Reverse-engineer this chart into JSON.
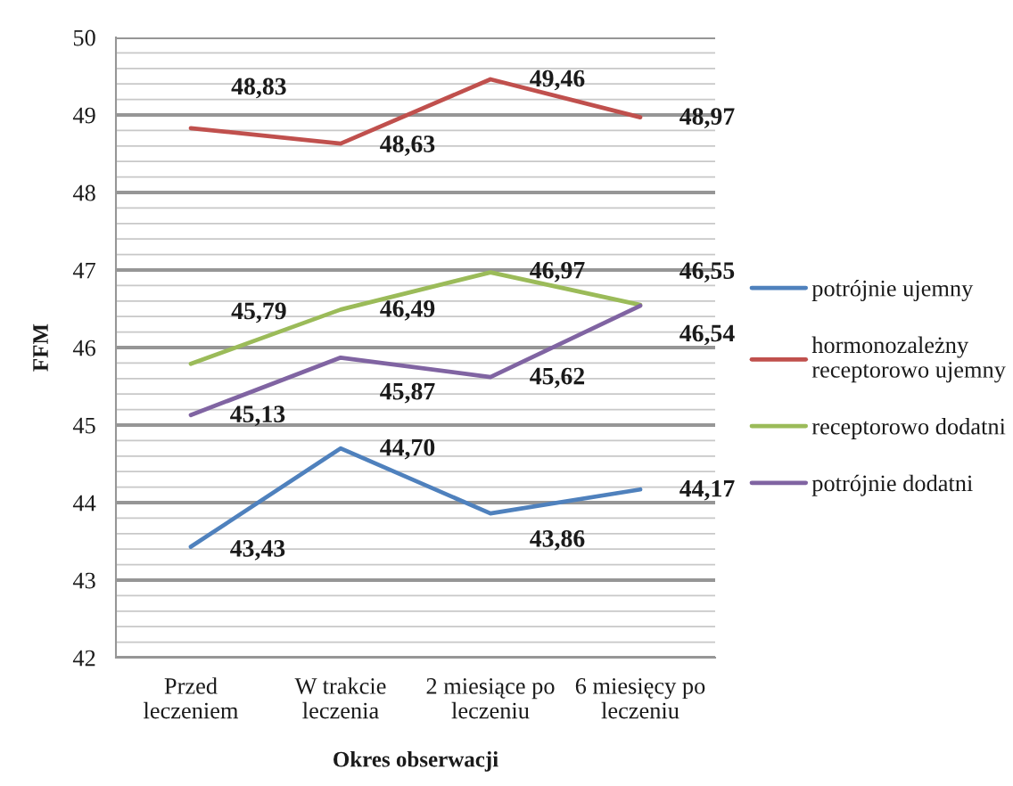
{
  "chart_data": {
    "type": "line",
    "xlabel": "Okres obserwacji",
    "ylabel": "FFM",
    "categories": [
      "Przed\nleczeniem",
      "W trakcie\nleczenia",
      "2 miesiące po\nleczeniu",
      "6 miesięcy po\nleczeniu"
    ],
    "series": [
      {
        "name": "potrójnie ujemny",
        "color": "#4f81bd",
        "values": [
          43.43,
          44.7,
          43.86,
          44.17
        ],
        "value_labels": [
          "43,43",
          "44,70",
          "43,86",
          "44,17"
        ]
      },
      {
        "name": "hormonozależny\nreceptorowo ujemny",
        "color": "#c0504d",
        "values": [
          48.83,
          48.63,
          49.46,
          48.97
        ],
        "value_labels": [
          "48,83",
          "48,63",
          "49,46",
          "48,97"
        ]
      },
      {
        "name": "receptorowo dodatni",
        "color": "#9bbb59",
        "values": [
          45.79,
          46.49,
          46.97,
          46.55
        ],
        "value_labels": [
          "45,79",
          "46,49",
          "46,97",
          "46,55"
        ]
      },
      {
        "name": "potrójnie dodatni",
        "color": "#8064a2",
        "values": [
          45.13,
          45.87,
          45.62,
          46.54
        ],
        "value_labels": [
          "45,13",
          "45,87",
          "45,62",
          "46,54"
        ]
      }
    ],
    "ylim": [
      42,
      50
    ],
    "yticks": [
      42,
      {
        "value": 42.2,
        "label": null
      },
      {
        "value": 42.4,
        "label": null
      },
      {
        "value": 42.6,
        "label": null
      },
      {
        "value": 42.8,
        "label": null
      },
      43,
      {
        "value": 43.2,
        "label": null
      },
      {
        "value": 43.4,
        "label": null
      },
      {
        "value": 43.6,
        "label": null
      },
      {
        "value": 43.8,
        "label": null
      },
      44,
      {
        "value": 44.2,
        "label": null
      },
      {
        "value": 44.4,
        "label": null
      },
      {
        "value": 44.6,
        "label": null
      },
      {
        "value": 44.8,
        "label": null
      },
      45,
      {
        "value": 45.2,
        "label": null
      },
      {
        "value": 45.4,
        "label": null
      },
      {
        "value": 45.6,
        "label": null
      },
      {
        "value": 45.8,
        "label": null
      },
      46,
      {
        "value": 46.2,
        "label": null
      },
      {
        "value": 46.4,
        "label": null
      },
      {
        "value": 46.6,
        "label": null
      },
      {
        "value": 46.8,
        "label": null
      },
      47,
      {
        "value": 47.2,
        "label": null
      },
      {
        "value": 47.4,
        "label": null
      },
      {
        "value": 47.6,
        "label": null
      },
      {
        "value": 47.8,
        "label": null
      },
      48,
      {
        "value": 48.2,
        "label": null
      },
      {
        "value": 48.4,
        "label": null
      },
      {
        "value": 48.6,
        "label": null
      },
      {
        "value": 48.8,
        "label": null
      },
      49,
      {
        "value": 49.2,
        "label": null
      },
      {
        "value": 49.4,
        "label": null
      },
      {
        "value": 49.6,
        "label": null
      },
      {
        "value": 49.8,
        "label": null
      },
      50
    ],
    "grid": "y",
    "legend": "right",
    "marker": "none",
    "line_style": "solid"
  }
}
